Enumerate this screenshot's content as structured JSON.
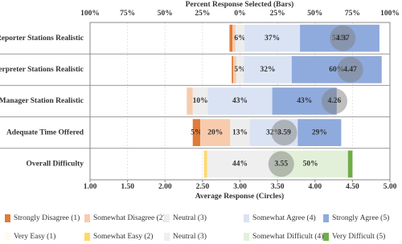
{
  "chart_data": {
    "type": "diverging-bar",
    "x_title": "Percent Response Selected (Bars)",
    "x2_title": "Average Response (Circles)",
    "categories": [
      "Reporter Stations Realistic",
      "Interpreter Stations Realistic",
      "Manager Station Realistic",
      "Adequate Time Offered",
      "Overall Difficulty"
    ],
    "xlim": [
      -100,
      100
    ],
    "xticks": [
      {
        "value": -100,
        "label": "100%"
      },
      {
        "value": -75,
        "label": "75%"
      },
      {
        "value": -50,
        "label": "50%"
      },
      {
        "value": -25,
        "label": "25%"
      },
      {
        "value": 0,
        "label": "0%"
      },
      {
        "value": 25,
        "label": "25%"
      },
      {
        "value": 50,
        "label": "50%"
      },
      {
        "value": 75,
        "label": "75%"
      },
      {
        "value": 100,
        "label": "100%"
      }
    ],
    "x2lim": [
      1,
      5
    ],
    "x2ticks": [
      {
        "value": 1,
        "label": "1.00"
      },
      {
        "value": 1.5,
        "label": "1.50"
      },
      {
        "value": 2,
        "label": "2.00"
      },
      {
        "value": 2.5,
        "label": "2.50"
      },
      {
        "value": 3,
        "label": "3.00"
      },
      {
        "value": 3.5,
        "label": "3.50"
      },
      {
        "value": 4,
        "label": "4.00"
      },
      {
        "value": 4.5,
        "label": "4.50"
      },
      {
        "value": 5,
        "label": "5.00"
      }
    ],
    "grid": true,
    "averages": [
      4.37,
      4.47,
      4.26,
      3.59,
      3.55
    ],
    "average_color": "#7f7f7f",
    "series": [
      {
        "name": "Strongly Disagree (1)",
        "color": "#e07b39",
        "values": [
          2,
          1,
          null,
          5,
          null
        ],
        "value_labels": [
          null,
          null,
          null,
          "5%",
          null
        ]
      },
      {
        "name": "Somewhat Disagree (2)",
        "color": "#f8cbad",
        "values": [
          2,
          2,
          4,
          20,
          null
        ],
        "value_labels": [
          null,
          null,
          null,
          "20%",
          null
        ]
      },
      {
        "name": "Neutral (3)",
        "color": "#ededed",
        "values": [
          6,
          5,
          10,
          13,
          null
        ],
        "value_labels": [
          "6%",
          "5%",
          "10%",
          "13%",
          null
        ]
      },
      {
        "name": "Somewhat Agree (4)",
        "color": "#dae3f3",
        "values": [
          37,
          32,
          43,
          32,
          null
        ],
        "value_labels": [
          "37%",
          "32%",
          "43%",
          "32%",
          null
        ]
      },
      {
        "name": "Strongly Agree (5)",
        "color": "#8faadc",
        "values": [
          53,
          60,
          43,
          29,
          null
        ],
        "value_labels": [
          "53%",
          "60%",
          "43%",
          "29%",
          null
        ]
      },
      {
        "name": "Very Easy (1)",
        "color": "#fffbea",
        "values": [
          null,
          null,
          null,
          null,
          0
        ],
        "value_labels": [
          null,
          null,
          null,
          null,
          null
        ]
      },
      {
        "name": "Somewhat Easy (2)",
        "color": "#ffd966",
        "values": [
          null,
          null,
          null,
          null,
          2
        ],
        "value_labels": [
          null,
          null,
          null,
          null,
          null
        ]
      },
      {
        "name": "Neutral (3)",
        "color": "#efefef",
        "values": [
          null,
          null,
          null,
          null,
          44
        ],
        "value_labels": [
          null,
          null,
          null,
          null,
          "44%"
        ]
      },
      {
        "name": "Somewhat Difficult (4)",
        "color": "#e2f0d9",
        "values": [
          null,
          null,
          null,
          null,
          50
        ],
        "value_labels": [
          null,
          null,
          null,
          null,
          "50%"
        ]
      },
      {
        "name": "Very Difficult (5)",
        "color": "#70ad47",
        "values": [
          null,
          null,
          null,
          null,
          3
        ],
        "value_labels": [
          null,
          null,
          null,
          null,
          null
        ]
      }
    ]
  }
}
